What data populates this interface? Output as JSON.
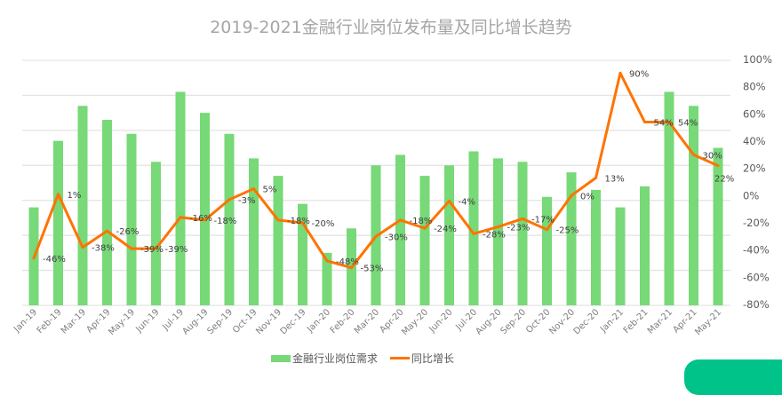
{
  "chart_data": {
    "type": "bar+line",
    "title": "2019-2021金融行业岗位发布量及同比增长趋势",
    "categories": [
      "Jan-19",
      "Feb-19",
      "Mar-19",
      "Apr-19",
      "May-19",
      "Jun-19",
      "Jul-19",
      "Aug-19",
      "Sep-19",
      "Oct-19",
      "Nov-19",
      "Dec-19",
      "Jan-20",
      "Feb-20",
      "Mar-20",
      "Apr-20",
      "May-20",
      "Jun-20",
      "Jul-20",
      "Aug-20",
      "Sep-20",
      "Oct-20",
      "Nov-20",
      "Dec-20",
      "Jan-21",
      "Feb-21",
      "Mar-21",
      "Apr-21",
      "May-21"
    ],
    "series": [
      {
        "name": "金融行业岗位需求",
        "type": "bar",
        "axis": "left-hidden",
        "color": "#77d977",
        "values": [
          28,
          47,
          57,
          53,
          49,
          41,
          61,
          55,
          49,
          42,
          37,
          29,
          15,
          22,
          40,
          43,
          37,
          40,
          44,
          42,
          41,
          31,
          38,
          33,
          28,
          34,
          61,
          57,
          45
        ]
      },
      {
        "name": "同比增长",
        "type": "line",
        "axis": "right",
        "color": "#ff7300",
        "values": [
          -46,
          1,
          -38,
          -26,
          -39,
          -39,
          -16,
          -18,
          -3,
          5,
          -18,
          -20,
          -48,
          -53,
          -30,
          -18,
          -24,
          -4,
          -28,
          -23,
          -17,
          -25,
          0,
          13,
          90,
          54,
          54,
          30,
          22
        ],
        "labels": [
          "-46%",
          "1%",
          "-38%",
          "-26%",
          "-39%",
          "-39%",
          "-16%",
          "-18%",
          "-3%",
          "5%",
          "-18%",
          "-20%",
          "-48%",
          "-53%",
          "-30%",
          "-18%",
          "-24%",
          "-4%",
          "-28%",
          "-23%",
          "-17%",
          "-25%",
          "0%",
          "13%",
          "90%",
          "54%",
          "54%",
          "30%",
          "22%"
        ]
      }
    ],
    "left_axis_range": [
      0,
      70
    ],
    "right_axis": {
      "range": [
        -80,
        100
      ],
      "ticks": [
        "100%",
        "80%",
        "60%",
        "40%",
        "20%",
        "0%",
        "-20%",
        "-40%",
        "-60%",
        "-80%"
      ]
    },
    "grid": true,
    "legend_position": "bottom"
  }
}
